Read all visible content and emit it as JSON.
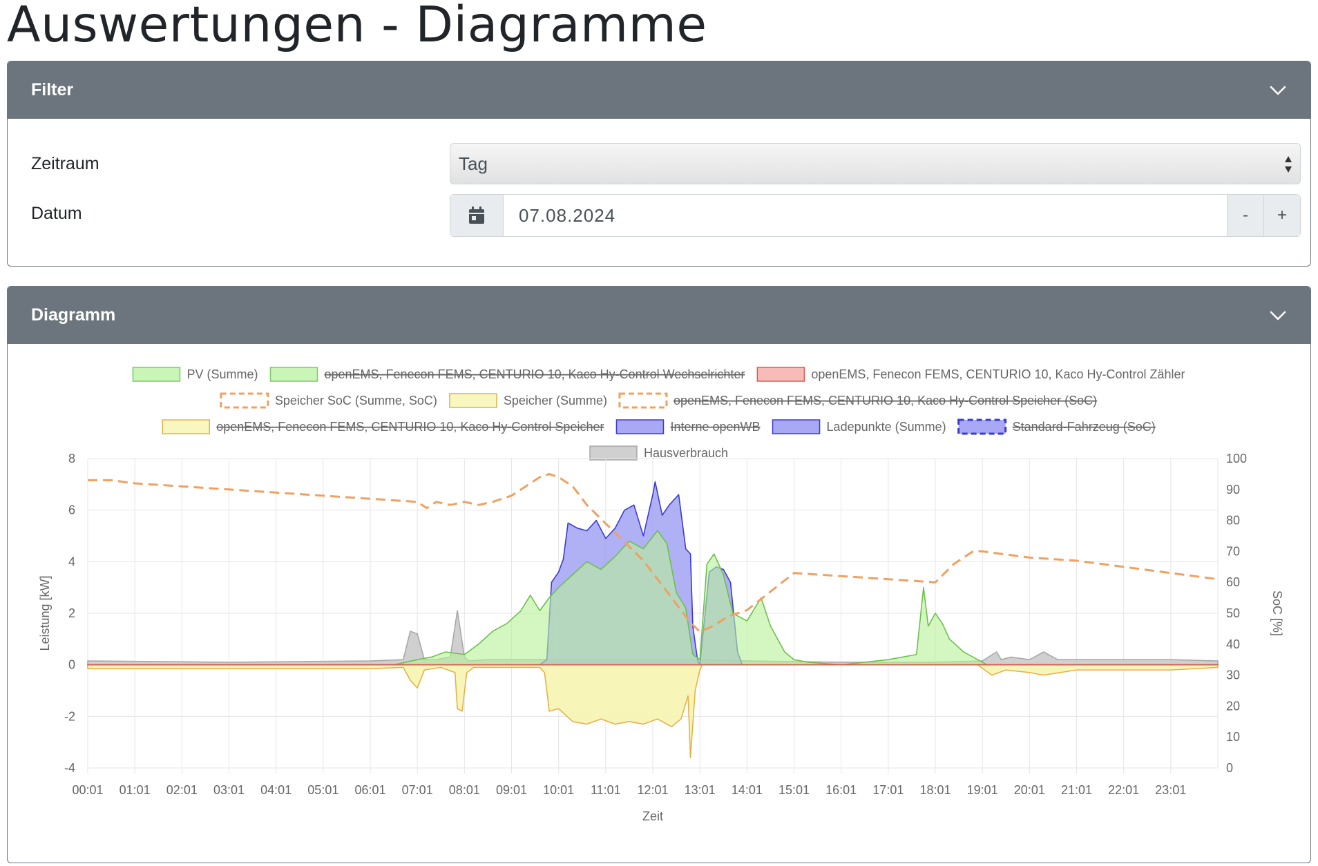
{
  "page": {
    "title": "Auswertungen - Diagramme"
  },
  "filter": {
    "header": "Filter",
    "zeitraum_label": "Zeitraum",
    "zeitraum_value": "Tag",
    "datum_label": "Datum",
    "datum_value": "07.08.2024",
    "minus_label": "-",
    "plus_label": "+"
  },
  "diagram": {
    "header": "Diagramm"
  },
  "chart_data": {
    "type": "area",
    "xlabel": "Zeit",
    "ylabel": "Leistung [kW]",
    "y2label": "SoC [%]",
    "ylim": [
      -4,
      8
    ],
    "y2lim": [
      0,
      100
    ],
    "yticks": [
      8,
      6,
      4,
      2,
      0,
      -2,
      -4
    ],
    "y2ticks": [
      100,
      90,
      80,
      70,
      60,
      50,
      40,
      30,
      20,
      10,
      0
    ],
    "xticks": [
      "00:01",
      "01:01",
      "02:01",
      "03:01",
      "04:01",
      "05:01",
      "06:01",
      "07:01",
      "08:01",
      "09:01",
      "10:01",
      "11:01",
      "12:01",
      "13:01",
      "14:01",
      "15:01",
      "16:01",
      "17:01",
      "18:01",
      "19:01",
      "20:01",
      "21:01",
      "22:01",
      "23:01"
    ],
    "grid": true,
    "legend_position": "top",
    "colors": {
      "pv": "#6cc04a",
      "pv_fill": "#b7f29a",
      "zaehler": "#e0584f",
      "zaehler_fill": "#f8b8b2",
      "soc": "#f0a060",
      "speicher": "#e8b04a",
      "speicher_fill": "#f6f5b0",
      "lade": "#3a3ad8",
      "lade_fill": "#9c9cf2",
      "haus": "#a8a8a8",
      "haus_fill": "#c8c8c8"
    },
    "legend": [
      {
        "label": "PV (Summe)",
        "hidden": false,
        "style": "fill",
        "fill": "#c9f5b7",
        "stroke": "#7ec86a"
      },
      {
        "label": "openEMS, Fenecon FEMS, CENTURIO 10, Kaco Hy-Control Wechselrichter",
        "hidden": true,
        "style": "fill",
        "fill": "#c9f5b7",
        "stroke": "#7ec86a"
      },
      {
        "label": "openEMS, Fenecon FEMS, CENTURIO 10, Kaco Hy-Control Zähler",
        "hidden": false,
        "style": "fill",
        "fill": "#f8bcb8",
        "stroke": "#e0584f"
      },
      {
        "label": "Speicher SoC (Summe, SoC)",
        "hidden": false,
        "style": "dash",
        "fill": "#ffffff",
        "stroke": "#f0a060"
      },
      {
        "label": "Speicher (Summe)",
        "hidden": false,
        "style": "fill",
        "fill": "#f8f7c0",
        "stroke": "#e8b04a"
      },
      {
        "label": "openEMS, Fenecon FEMS, CENTURIO 10, Kaco Hy-Control Speicher (SoC)",
        "hidden": true,
        "style": "dash",
        "fill": "#ffffff",
        "stroke": "#f0a060"
      },
      {
        "label": "openEMS, Fenecon FEMS, CENTURIO 10, Kaco Hy-Control Speicher",
        "hidden": true,
        "style": "fill",
        "fill": "#f8f7c0",
        "stroke": "#e8b04a"
      },
      {
        "label": "Interne openWB",
        "hidden": true,
        "style": "fill",
        "fill": "#a8a8f4",
        "stroke": "#3a3ad8"
      },
      {
        "label": "Ladepunkte (Summe)",
        "hidden": false,
        "style": "fill",
        "fill": "#a8a8f4",
        "stroke": "#3a3ad8"
      },
      {
        "label": "Standard-Fahrzeug (SoC)",
        "hidden": true,
        "style": "dash",
        "fill": "#a8a8f4",
        "stroke": "#3a3ad8"
      },
      {
        "label": "Hausverbrauch",
        "hidden": false,
        "style": "fill",
        "fill": "#d0d0d0",
        "stroke": "#a8a8a8"
      }
    ],
    "series": [
      {
        "name": "PV (Summe)",
        "axis": "left",
        "x": [
          0,
          6.5,
          7,
          7.3,
          7.6,
          8,
          8.3,
          8.6,
          8.9,
          9.2,
          9.4,
          9.6,
          9.8,
          10,
          10.3,
          10.6,
          10.9,
          11.2,
          11.5,
          11.8,
          12.1,
          12.3,
          12.5,
          12.7,
          12.85,
          13,
          13.15,
          13.3,
          13.5,
          13.7,
          14,
          14.3,
          14.5,
          14.8,
          15,
          15.3,
          16,
          17,
          17.6,
          17.75,
          17.85,
          18,
          18.15,
          18.3,
          18.6,
          19,
          19.1,
          24
        ],
        "y": [
          0,
          0,
          0.2,
          0.3,
          0.5,
          0.4,
          0.8,
          1.3,
          1.6,
          2.1,
          2.7,
          2.1,
          2.6,
          3.0,
          3.5,
          4.0,
          3.7,
          4.2,
          4.8,
          4.5,
          5.2,
          4.7,
          2.8,
          2.2,
          0.4,
          0.2,
          3.9,
          4.3,
          3.5,
          2.0,
          1.7,
          2.6,
          1.5,
          0.5,
          0.2,
          0.1,
          0,
          0.2,
          0.4,
          3.0,
          1.5,
          2.0,
          1.6,
          1.0,
          0.5,
          0.1,
          0,
          0
        ]
      },
      {
        "name": "openEMS, Fenecon FEMS, CENTURIO 10, Kaco Hy-Control Zähler",
        "axis": "left",
        "x": [
          0,
          24
        ],
        "y": [
          0,
          0
        ]
      },
      {
        "name": "Speicher SoC (Summe, SoC)",
        "axis": "right",
        "x": [
          0,
          0.5,
          1,
          2,
          3,
          4,
          5,
          6,
          7,
          7.2,
          7.4,
          7.7,
          8,
          8.3,
          8.6,
          9,
          9.3,
          9.6,
          9.8,
          10,
          10.3,
          10.6,
          11,
          11.4,
          11.8,
          12.2,
          12.5,
          12.8,
          13,
          13.3,
          13.6,
          14,
          14.5,
          15,
          16,
          17,
          18,
          18.4,
          18.8,
          19,
          19.5,
          20,
          21,
          22,
          23,
          24
        ],
        "y": [
          93,
          93,
          92,
          91,
          90,
          89,
          88,
          87,
          86,
          84,
          86,
          85,
          86,
          85,
          86,
          88,
          91,
          94,
          95,
          94,
          91,
          85,
          79,
          73,
          67,
          59,
          53,
          47,
          44,
          46,
          49,
          51,
          57,
          63,
          62,
          61,
          60,
          66,
          70,
          70,
          69,
          68,
          67,
          65,
          63,
          61
        ]
      },
      {
        "name": "Speicher (Summe)",
        "axis": "left",
        "x": [
          0,
          6,
          6.7,
          6.85,
          7,
          7.15,
          7.5,
          7.8,
          7.85,
          7.95,
          8.05,
          8.2,
          8.5,
          9,
          9.6,
          9.7,
          9.75,
          9.8,
          10,
          10.3,
          10.6,
          10.9,
          11.2,
          11.5,
          11.8,
          12.1,
          12.4,
          12.6,
          12.75,
          12.8,
          12.9,
          13.0,
          13.05,
          13.1,
          14,
          16,
          18,
          18.9,
          19.05,
          19.2,
          19.5,
          20,
          20.3,
          21,
          22,
          23,
          24
        ],
        "y": [
          -0.15,
          -0.15,
          -0.1,
          -0.6,
          -0.9,
          -0.2,
          -0.1,
          -0.3,
          -1.7,
          -1.8,
          -0.3,
          -0.1,
          -0.1,
          -0.1,
          -0.1,
          -0.3,
          -1.0,
          -1.8,
          -1.7,
          -2.2,
          -2.3,
          -2.1,
          -2.3,
          -2.2,
          -2.3,
          -2.1,
          -2.4,
          -2.1,
          -1.2,
          -3.6,
          -1.0,
          -0.2,
          0,
          0,
          0,
          0,
          0,
          0,
          -0.2,
          -0.4,
          -0.2,
          -0.3,
          -0.4,
          -0.2,
          -0.2,
          -0.2,
          -0.1
        ]
      },
      {
        "name": "Ladepunkte (Summe)",
        "axis": "left",
        "x": [
          0,
          9.6,
          9.75,
          9.85,
          10,
          10.1,
          10.2,
          10.4,
          10.6,
          10.8,
          11,
          11.2,
          11.4,
          11.6,
          11.8,
          12,
          12.05,
          12.2,
          12.35,
          12.55,
          12.7,
          12.8,
          12.85,
          12.95,
          13,
          13.2,
          13.35,
          13.5,
          13.65,
          13.8,
          13.9,
          24
        ],
        "y": [
          0,
          0,
          0.2,
          3.2,
          3.6,
          4.1,
          5.5,
          5.3,
          5.2,
          5.6,
          4.9,
          5.3,
          6.0,
          6.2,
          5.0,
          6.6,
          7.1,
          5.8,
          6.2,
          6.6,
          4.5,
          4.3,
          1.5,
          0.2,
          0,
          3.6,
          3.8,
          3.7,
          3.2,
          0.5,
          0,
          0
        ]
      },
      {
        "name": "Hausverbrauch",
        "axis": "left",
        "x": [
          0,
          3,
          6,
          6.7,
          6.85,
          7,
          7.15,
          7.4,
          7.7,
          7.85,
          8,
          8.1,
          8.5,
          9,
          10,
          12,
          13,
          14,
          16,
          18,
          19,
          19.3,
          19.4,
          19.6,
          20,
          20.3,
          20.6,
          21,
          22,
          23,
          24
        ],
        "y": [
          0.15,
          0.1,
          0.15,
          0.2,
          1.3,
          1.2,
          0.2,
          0.2,
          0.3,
          2.1,
          0.3,
          0.15,
          0.2,
          0.2,
          0.2,
          0.2,
          0.2,
          0.15,
          0.1,
          0.1,
          0.15,
          0.5,
          0.2,
          0.3,
          0.2,
          0.5,
          0.2,
          0.2,
          0.2,
          0.2,
          0.15
        ]
      }
    ]
  }
}
